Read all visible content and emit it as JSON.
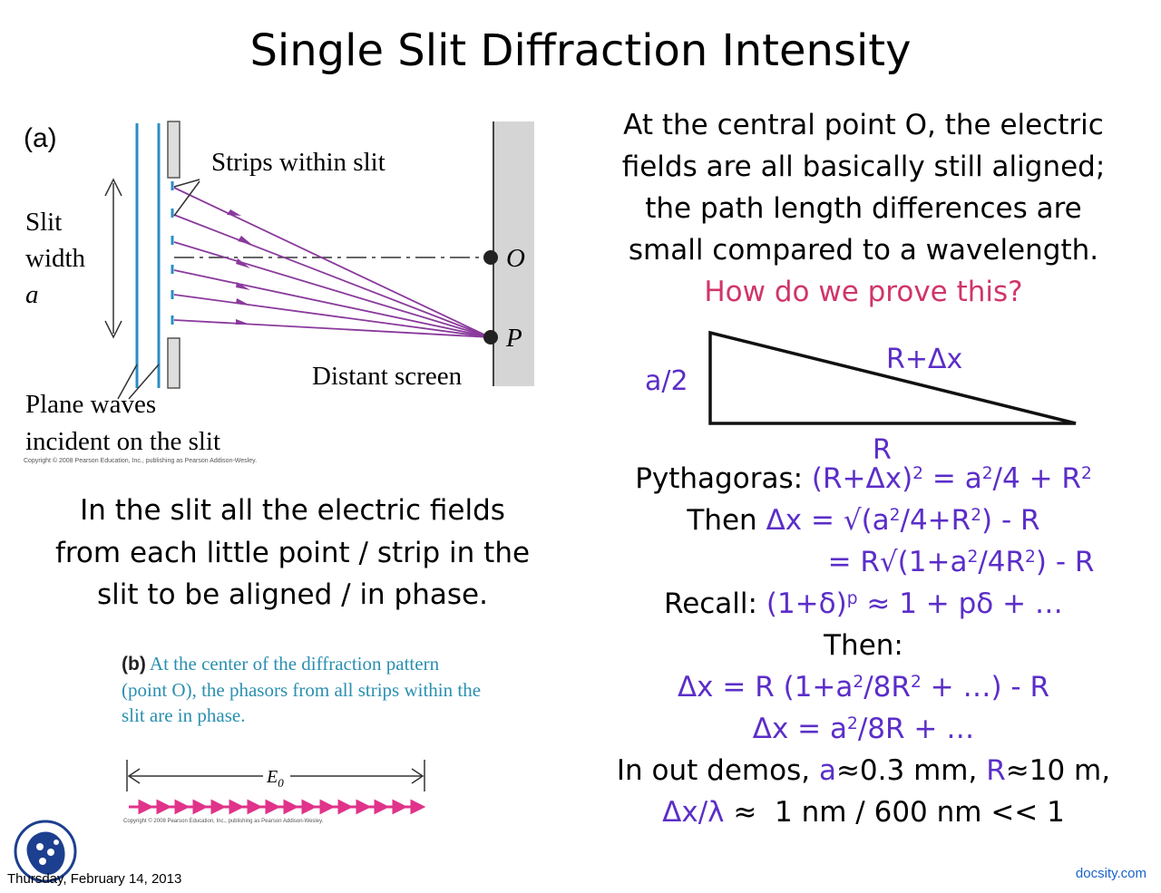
{
  "title": "Single Slit Diffraction Intensity",
  "figure_a": {
    "panel_label": "(a)",
    "strips_label": "Strips within slit",
    "slit_width_label": [
      "Slit",
      "width",
      "a"
    ],
    "point_o": "O",
    "point_p": "P",
    "screen_label": "Distant screen",
    "plane_waves_label": [
      "Plane waves",
      "incident on the slit"
    ],
    "copyright": "Copyright © 2008 Pearson Education, Inc., publishing as Pearson Addison-Wesley."
  },
  "left_text": {
    "lines": [
      "In the slit all the electric fields",
      "from each little point / strip in the",
      "slit to be aligned / in phase."
    ]
  },
  "figure_b": {
    "panel_label": "(b)",
    "caption_lines": [
      "At the center of the diffraction pattern",
      "(point O), the phasors from all strips within the",
      "slit are in phase."
    ],
    "e0_label": "E",
    "e0_sub": "0",
    "copyright": "Copyright © 2008 Pearson Education, Inc., publishing as Pearson Addison-Wesley."
  },
  "right_text": {
    "lines": [
      "At the central point O, the electric",
      "fields are all basically still aligned;",
      "the path length differences are",
      "small compared to a wavelength."
    ],
    "question": "How do we prove this?"
  },
  "triangle": {
    "side_label": "a/2",
    "hyp_label": "R+Δx",
    "base_label": "R"
  },
  "derivation": {
    "pyth_prefix": "Pythagoras:",
    "then_prefix": "Then",
    "recall_prefix": "Recall:",
    "then2": "Then:",
    "demos_prefix": "In out demos,",
    "demos_a": "a",
    "demos_a_val": "≈0.3 mm,",
    "demos_r": "R",
    "demos_r_val": "≈10 m,",
    "ratio_sym": "Δx/λ",
    "ratio_rest": " ≈  1 nm / 600 nm << 1"
  },
  "colors": {
    "accent_purple": "#5b2ec8",
    "question_pink": "#d0356a",
    "caption_teal": "#2a8fb0",
    "ray_purple": "#8a3a9c",
    "phasor_magenta": "#e0338a",
    "docsity_blue": "#1a63c8"
  },
  "icons": [
    "docsity-logo-icon"
  ],
  "footer": {
    "date": "Thursday, February 14, 2013",
    "brand": "docsity.com"
  }
}
